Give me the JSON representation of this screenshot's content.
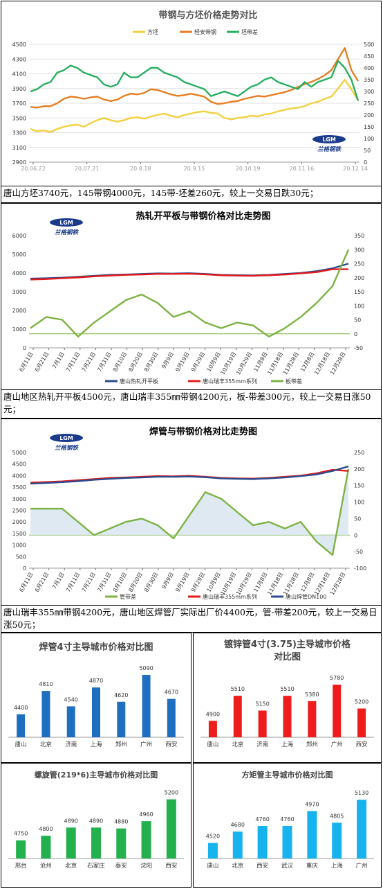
{
  "charts": [
    {
      "type": "line",
      "title": "带钢与方坯价格走势对比",
      "x_ticks": [
        "20.06.22",
        "20.07.21",
        "20.8.18",
        "20.9.15",
        "20.10.19",
        "20.11.16",
        "20.12.14"
      ],
      "ylim_left": [
        2900,
        4500
      ],
      "yticks_left": [
        2900,
        3100,
        3300,
        3500,
        3700,
        3900,
        4100,
        4300,
        4500
      ],
      "ylim_right": [
        0,
        500
      ],
      "yticks_right": [
        0,
        50,
        100,
        150,
        200,
        250,
        300,
        350,
        400,
        450,
        500
      ],
      "series": [
        {
          "name": "方坯",
          "color": "#f4d03f",
          "axis": "left",
          "values": [
            3350,
            3320,
            3330,
            3310,
            3350,
            3380,
            3400,
            3410,
            3380,
            3430,
            3470,
            3500,
            3470,
            3450,
            3470,
            3500,
            3510,
            3490,
            3520,
            3540,
            3560,
            3530,
            3510,
            3540,
            3560,
            3580,
            3590,
            3570,
            3560,
            3500,
            3480,
            3500,
            3510,
            3530,
            3520,
            3550,
            3560,
            3590,
            3610,
            3630,
            3640,
            3660,
            3700,
            3720,
            3760,
            3790,
            3900,
            4020,
            3890,
            3740
          ]
        },
        {
          "name": "轻安带钢",
          "color": "#e67e22",
          "axis": "left",
          "values": [
            3650,
            3640,
            3660,
            3660,
            3700,
            3760,
            3790,
            3780,
            3760,
            3780,
            3790,
            3750,
            3730,
            3750,
            3800,
            3830,
            3820,
            3840,
            3890,
            3880,
            3850,
            3820,
            3800,
            3810,
            3830,
            3810,
            3790,
            3720,
            3690,
            3700,
            3720,
            3730,
            3760,
            3780,
            3800,
            3790,
            3810,
            3830,
            3850,
            3880,
            3920,
            3960,
            3990,
            4030,
            4080,
            4150,
            4300,
            4450,
            4150,
            4000
          ]
        },
        {
          "name": "坯带差",
          "color": "#27ae60",
          "axis": "right",
          "values": [
            300,
            310,
            330,
            340,
            380,
            390,
            410,
            400,
            380,
            370,
            360,
            330,
            320,
            330,
            380,
            360,
            360,
            380,
            400,
            400,
            380,
            370,
            360,
            340,
            330,
            320,
            310,
            280,
            290,
            300,
            290,
            280,
            300,
            320,
            330,
            350,
            360,
            340,
            330,
            320,
            310,
            340,
            320,
            340,
            350,
            360,
            430,
            400,
            350,
            260
          ]
        }
      ],
      "watermark": "兰格钢铁"
    },
    {
      "type": "line",
      "title": "热轧开平板与带钢价格对比走势图",
      "x_ticks": [
        "6月11日",
        "6月21日",
        "7月1日",
        "7月11日",
        "7月21日",
        "7月31日",
        "8月10日",
        "8月20日",
        "8月30日",
        "9月9日",
        "9月19日",
        "9月29日",
        "10月9日",
        "10月19日",
        "10月29日",
        "11月8日",
        "11月18日",
        "11月28日",
        "12月8日",
        "12月18日",
        "12月28日"
      ],
      "ylim_left": [
        0,
        6000
      ],
      "yticks_left": [
        0,
        1000,
        2000,
        3000,
        4000,
        5000,
        6000
      ],
      "ylim_right": [
        -50,
        350
      ],
      "yticks_right": [
        -50,
        0,
        50,
        100,
        150,
        200,
        250,
        300,
        350
      ],
      "series": [
        {
          "name": "唐山热轧开平板",
          "color": "#2c4a8c",
          "axis": "left",
          "values": [
            3700,
            3720,
            3750,
            3800,
            3850,
            3900,
            3920,
            3950,
            3980,
            3970,
            3990,
            3950,
            3900,
            3880,
            3870,
            3900,
            3950,
            4000,
            4100,
            4250,
            4500
          ]
        },
        {
          "name": "唐山瑞丰355mm系列",
          "color": "#e31a1c",
          "axis": "left",
          "values": [
            3650,
            3680,
            3720,
            3760,
            3820,
            3860,
            3900,
            3920,
            3950,
            3950,
            3960,
            3930,
            3880,
            3860,
            3850,
            3880,
            3920,
            3980,
            4050,
            4200,
            4200
          ]
        },
        {
          "name": "板带差",
          "color": "#7cb342",
          "axis": "right",
          "values": [
            20,
            60,
            50,
            -10,
            40,
            80,
            120,
            140,
            110,
            60,
            80,
            40,
            20,
            40,
            30,
            -10,
            20,
            60,
            110,
            170,
            300
          ]
        }
      ],
      "watermark": "兰格钢铁"
    },
    {
      "type": "line",
      "title": "焊管与带钢价格对比走势图",
      "x_ticks": [
        "6月11日",
        "6月21日",
        "7月1日",
        "7月11日",
        "7月21日",
        "7月31日",
        "8月10日",
        "8月20日",
        "8月30日",
        "9月9日",
        "9月19日",
        "9月29日",
        "10月9日",
        "10月19日",
        "10月29日",
        "11月8日",
        "11月18日",
        "11月28日",
        "12月8日",
        "12月18日",
        "12月28日"
      ],
      "ylim_left": [
        0,
        5000
      ],
      "yticks_left": [
        0,
        500,
        1000,
        1500,
        2000,
        2500,
        3000,
        3500,
        4000,
        4500,
        5000
      ],
      "ylim_right": [
        -100,
        250
      ],
      "yticks_right": [
        -100,
        -50,
        0,
        50,
        100,
        150,
        200,
        250
      ],
      "series": [
        {
          "name": "管带差",
          "color": "#7cb342",
          "axis": "right",
          "values": [
            80,
            80,
            80,
            40,
            0,
            20,
            40,
            50,
            30,
            -10,
            60,
            130,
            110,
            70,
            30,
            40,
            20,
            40,
            -20,
            -60,
            200
          ]
        },
        {
          "name": "唐山瑞丰355mm系列",
          "color": "#e31a1c",
          "axis": "left",
          "values": [
            3700,
            3720,
            3750,
            3800,
            3850,
            3900,
            3920,
            3950,
            3980,
            3970,
            3990,
            3950,
            3900,
            3880,
            3870,
            3900,
            3950,
            4000,
            4100,
            4250,
            4200
          ]
        },
        {
          "name": "唐山焊管DN100",
          "color": "#2c4a8c",
          "axis": "left",
          "values": [
            3650,
            3680,
            3720,
            3760,
            3820,
            3860,
            3900,
            3920,
            3950,
            3950,
            3960,
            3930,
            3880,
            3860,
            3850,
            3880,
            3920,
            3980,
            4050,
            4200,
            4400
          ]
        }
      ],
      "watermark": "兰格钢铁"
    },
    {
      "type": "bar",
      "title": "焊管4寸主导城市价格对比图",
      "categories": [
        "唐山",
        "北京",
        "济南",
        "上海",
        "郑州",
        "广州",
        "西安"
      ],
      "values": [
        4400,
        4810,
        4540,
        4870,
        4620,
        5090,
        4670
      ],
      "color": "#1f6fc1",
      "ylim": [
        4000,
        5150
      ]
    },
    {
      "type": "bar",
      "title": "镀锌管4寸(3.75)主导城市价格对比图",
      "categories": [
        "唐山",
        "北京",
        "济南",
        "上海",
        "郑州",
        "广州",
        "西安"
      ],
      "values": [
        4900,
        5510,
        5150,
        5510,
        5380,
        5780,
        5200
      ],
      "color": "#ee1c1c",
      "ylim": [
        4500,
        5850
      ]
    },
    {
      "type": "bar",
      "title": "螺旋管(219*6)主导城市价格对比图",
      "categories": [
        "邢台",
        "沧州",
        "北京",
        "石家庄",
        "泰安",
        "沈阳",
        "西安"
      ],
      "values": [
        4750,
        4800,
        4890,
        4890,
        4880,
        4960,
        5200
      ],
      "color": "#22b14c",
      "ylim": [
        4550,
        5250
      ]
    },
    {
      "type": "bar",
      "title": "方矩管主导城市价格对比图",
      "categories": [
        "唐山",
        "北京",
        "西安",
        "武汉",
        "重庆",
        "上海",
        "广州"
      ],
      "values": [
        4520,
        4680,
        4760,
        4760,
        4970,
        4805,
        5130
      ],
      "color": "#16b3ee",
      "ylim": [
        4300,
        5200
      ]
    }
  ],
  "captions": [
    "唐山方坯3740元，145带钢4000元，145带-坯差260元，较上一交易日跌30元；",
    "唐山地区热轧开平板4500元，唐山瑞丰355㎜带钢4200元，板-带差300元，较上一交易日涨50元；",
    "唐山瑞丰355㎜带钢4200元，唐山地区焊管厂实际出厂价4400元，管-带差200元，较上一交易日涨50元；"
  ]
}
